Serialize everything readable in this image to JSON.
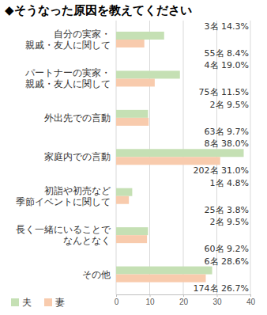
{
  "chart_data": {
    "type": "bar",
    "title": "◆そうなった原因を教えてください",
    "orientation": "horizontal",
    "categories": [
      "自分の実家・\n親戚・友人に関して",
      "パートナーの実家・\n親戚・友人に関して",
      "外出先での言動",
      "家庭内での言動",
      "初詣や初売など\n季節イベントに関して",
      "長く一緒にいることで\nなんとなく",
      "その他"
    ],
    "series": [
      {
        "name": "夫",
        "color": "#c5e0b4",
        "values": [
          14.3,
          19.0,
          9.5,
          38.0,
          4.8,
          9.5,
          28.6
        ],
        "value_labels": [
          "3名 14.3%",
          "4名 19.0%",
          "2名 9.5%",
          "8名 38.0%",
          "1名 4.8%",
          "2名 9.5%",
          "6名 28.6%"
        ]
      },
      {
        "name": "妻",
        "color": "#f8cbad",
        "values": [
          8.4,
          11.5,
          9.7,
          31.0,
          3.8,
          9.2,
          26.7
        ],
        "value_labels": [
          "55名 8.4%",
          "75名 11.5%",
          "63名 9.7%",
          "202名 31.0%",
          "25名 3.8%",
          "60名 9.2%",
          "174名 26.7%"
        ]
      }
    ],
    "xlim": [
      0,
      40
    ],
    "xticks": [
      0,
      10,
      20,
      30,
      40
    ],
    "grid": true,
    "legend": "bottom",
    "data_labels": true
  }
}
